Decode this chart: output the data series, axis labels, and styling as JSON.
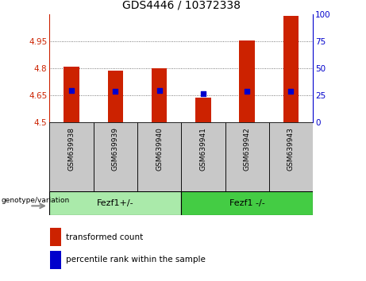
{
  "title": "GDS4446 / 10372338",
  "samples": [
    "GSM639938",
    "GSM639939",
    "GSM639940",
    "GSM639941",
    "GSM639942",
    "GSM639943"
  ],
  "bar_values": [
    4.81,
    4.785,
    4.8,
    4.635,
    4.955,
    5.09
  ],
  "percentile_values": [
    4.675,
    4.672,
    4.675,
    4.66,
    4.672,
    4.672
  ],
  "y_min": 4.5,
  "y_max": 5.1,
  "y_ticks": [
    4.5,
    4.65,
    4.8,
    4.95
  ],
  "y_tick_labels": [
    "4.5",
    "4.65",
    "4.8",
    "4.95"
  ],
  "y2_ticks": [
    0,
    25,
    50,
    75,
    100
  ],
  "y2_tick_labels": [
    "0",
    "25",
    "50",
    "75",
    "100"
  ],
  "bar_color": "#cc2200",
  "dot_color": "#0000cc",
  "group1_label": "Fezf1+/-",
  "group2_label": "Fezf1 -/-",
  "group_color1": "#aaeaaa",
  "group_color2": "#44cc44",
  "sample_bg_color": "#c8c8c8",
  "legend_bar_label": "transformed count",
  "legend_dot_label": "percentile rank within the sample",
  "genotype_label": "genotype/variation",
  "title_fontsize": 10,
  "tick_fontsize": 7.5,
  "bar_width": 0.35,
  "y_label_color": "#cc2200",
  "y2_label_color": "#0000cc",
  "dotted_line_color": "#555555",
  "sample_fontsize": 6.5,
  "group_fontsize": 8,
  "legend_fontsize": 7.5
}
